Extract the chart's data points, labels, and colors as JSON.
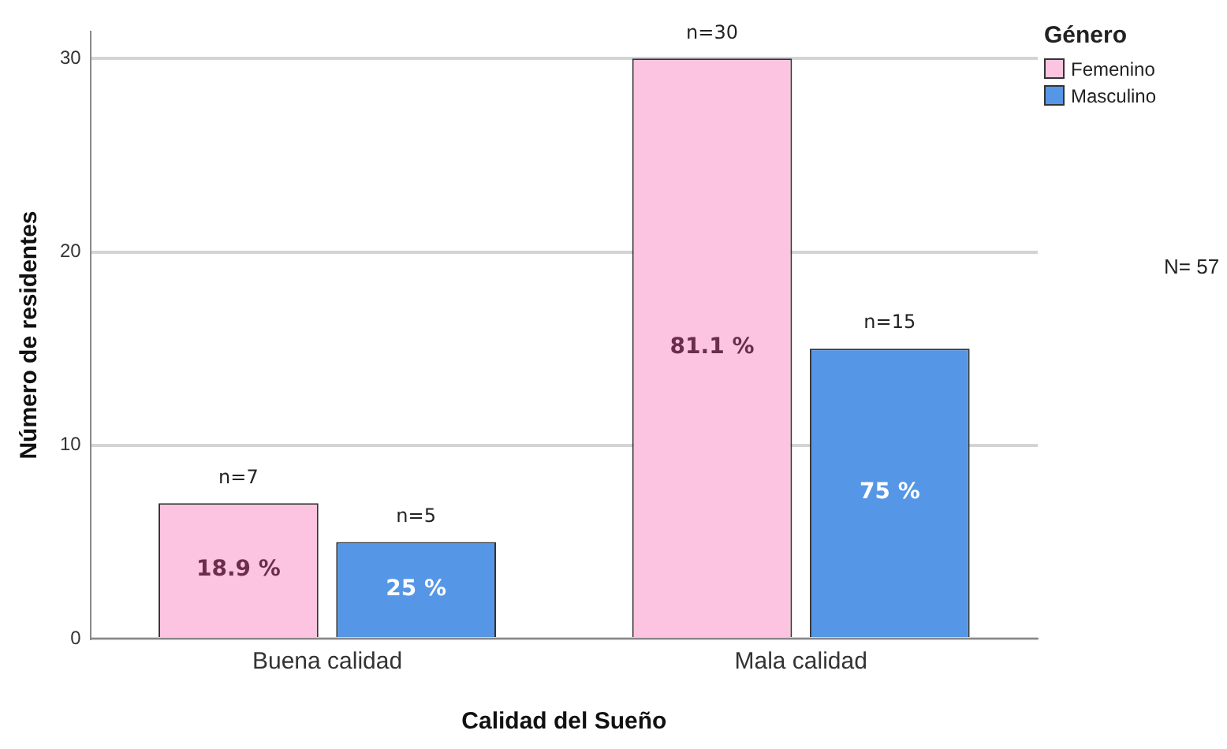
{
  "chart_data": {
    "type": "bar",
    "xlabel": "Calidad del Sueño",
    "ylabel": "Número de residentes",
    "legend_title": "Género",
    "categories": [
      "Buena calidad",
      "Mala calidad"
    ],
    "series": [
      {
        "name": "Femenino",
        "color": "#fcc4e0",
        "values": [
          7,
          30
        ],
        "value_labels": [
          "n=7",
          "n=30"
        ]
      },
      {
        "name": "Masculino",
        "color": "#5596e6",
        "values": [
          5,
          15
        ],
        "value_labels": [
          "n=5",
          "n=15"
        ]
      }
    ],
    "annotations": [
      "18.9 %",
      "25 %",
      "81.1 %",
      "75 %",
      "N= 57"
    ],
    "ylim": [
      0,
      31.4
    ],
    "yticks": [
      0,
      10,
      20,
      30
    ],
    "grid": "y",
    "legend": "top right"
  }
}
